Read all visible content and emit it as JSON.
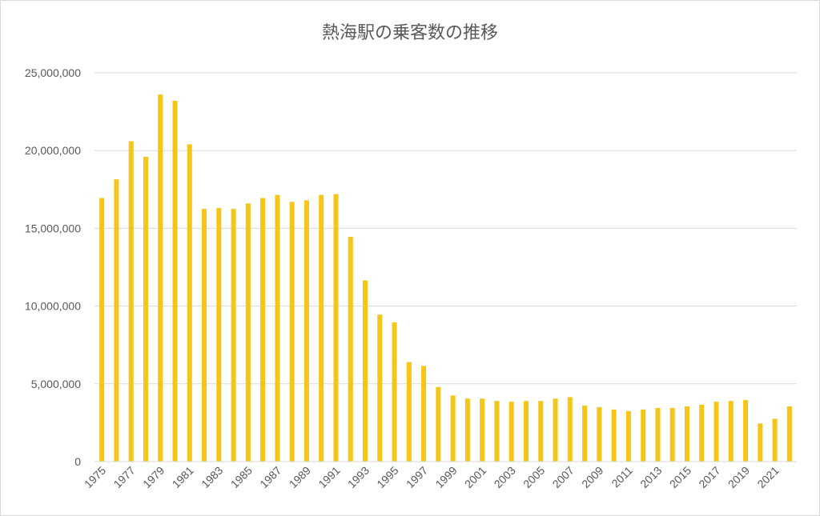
{
  "chart_data": {
    "type": "bar",
    "title": "熱海駅の乗客数の推移",
    "xlabel": "",
    "ylabel": "",
    "ylim": [
      0,
      25000000
    ],
    "yticks": [
      0,
      5000000,
      10000000,
      15000000,
      20000000,
      25000000
    ],
    "ytick_labels": [
      "0",
      "5,000,000",
      "10,000,000",
      "15,000,000",
      "20,000,000",
      "25,000,000"
    ],
    "grid": true,
    "bar_color": "#F5C518",
    "categories": [
      "1975",
      "1976",
      "1977",
      "1978",
      "1979",
      "1980",
      "1981",
      "1982",
      "1983",
      "1984",
      "1985",
      "1986",
      "1987",
      "1988",
      "1989",
      "1990",
      "1991",
      "1992",
      "1993",
      "1994",
      "1995",
      "1996",
      "1997",
      "1998",
      "1999",
      "2000",
      "2001",
      "2002",
      "2003",
      "2004",
      "2005",
      "2006",
      "2007",
      "2008",
      "2009",
      "2010",
      "2011",
      "2012",
      "2013",
      "2014",
      "2015",
      "2016",
      "2017",
      "2018",
      "2019",
      "2020",
      "2021",
      "2022"
    ],
    "xtick_labels": [
      "1975",
      "1977",
      "1979",
      "1981",
      "1983",
      "1985",
      "1987",
      "1989",
      "1991",
      "1993",
      "1995",
      "1997",
      "1999",
      "2001",
      "2003",
      "2005",
      "2007",
      "2009",
      "2011",
      "2013",
      "2015",
      "2017",
      "2019",
      "2021"
    ],
    "values": [
      16950000,
      18150000,
      20600000,
      19600000,
      23600000,
      23200000,
      20400000,
      16250000,
      16300000,
      16250000,
      16600000,
      16950000,
      17150000,
      16700000,
      16800000,
      17150000,
      17200000,
      14450000,
      11650000,
      9450000,
      8950000,
      6400000,
      6150000,
      4800000,
      4250000,
      4050000,
      4050000,
      3900000,
      3850000,
      3900000,
      3900000,
      4050000,
      4150000,
      3600000,
      3500000,
      3350000,
      3250000,
      3350000,
      3450000,
      3450000,
      3550000,
      3650000,
      3850000,
      3900000,
      3950000,
      2450000,
      2750000,
      3550000
    ]
  }
}
